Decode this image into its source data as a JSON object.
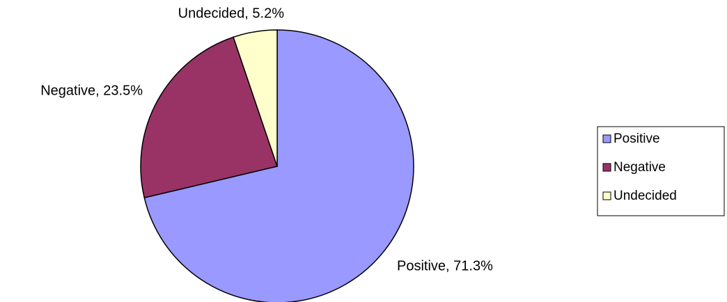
{
  "chart_data": {
    "type": "pie",
    "categories": [
      "Positive",
      "Negative",
      "Undecided"
    ],
    "values": [
      71.3,
      23.5,
      5.2
    ],
    "value_labels": [
      "Positive, 71.3%",
      "Negative, 23.5%",
      "Undecided, 5.2%"
    ],
    "colors": [
      "#9999ff",
      "#993366",
      "#ffffcc"
    ],
    "legend": "right"
  }
}
